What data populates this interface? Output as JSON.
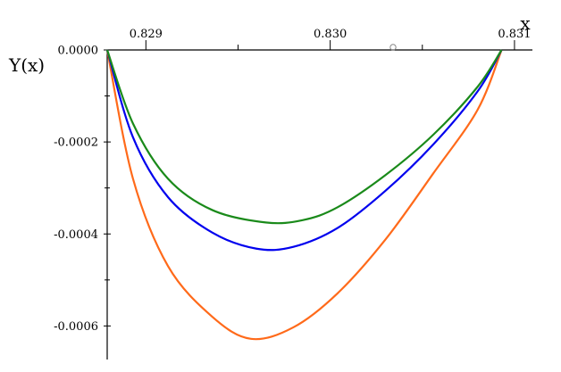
{
  "chart_data": {
    "type": "line",
    "title": "",
    "xlabel": "x",
    "ylabel": "Y(x)",
    "xlim": [
      0.82879,
      0.83101
    ],
    "ylim": [
      -0.00064,
      0.0
    ],
    "x_ticks": [
      0.829,
      0.83,
      0.831
    ],
    "x_tick_labels": [
      "0.829",
      "0.830",
      "0.831"
    ],
    "x_minor_ticks": [
      0.8295,
      0.8305
    ],
    "y_ticks": [
      0.0,
      -0.0002,
      -0.0004,
      -0.0006
    ],
    "y_tick_labels": [
      "0.0000",
      "-0.0002",
      "-0.0004",
      "-0.0006"
    ],
    "y_minor_ticks": [
      -0.0001,
      -0.0003,
      -0.0005
    ],
    "x_axis_position": "top",
    "grid": false,
    "legend": "none",
    "series": [
      {
        "color": "#ff6a1a",
        "points": [
          [
            0.82879,
            0.0
          ],
          [
            0.82893,
            -0.00028
          ],
          [
            0.82912,
            -0.00047
          ],
          [
            0.82936,
            -0.00058
          ],
          [
            0.82957,
            -0.000628
          ],
          [
            0.8298,
            -0.000603
          ],
          [
            0.83004,
            -0.000529
          ],
          [
            0.8303,
            -0.000412
          ],
          [
            0.83056,
            -0.000268
          ],
          [
            0.8308,
            -0.00013
          ],
          [
            0.83093,
            0.0
          ]
        ]
      },
      {
        "color": "#0000ee",
        "points": [
          [
            0.82879,
            0.0
          ],
          [
            0.82893,
            -0.00019
          ],
          [
            0.82912,
            -0.00032
          ],
          [
            0.82936,
            -0.000397
          ],
          [
            0.8296,
            -0.000432
          ],
          [
            0.8298,
            -0.000428
          ],
          [
            0.83004,
            -0.000387
          ],
          [
            0.8303,
            -0.000306
          ],
          [
            0.83056,
            -0.000205
          ],
          [
            0.8308,
            -9e-05
          ],
          [
            0.83093,
            0.0
          ]
        ]
      },
      {
        "color": "#1a8a1a",
        "points": [
          [
            0.82879,
            0.0
          ],
          [
            0.82893,
            -0.00016
          ],
          [
            0.82912,
            -0.00028
          ],
          [
            0.82936,
            -0.000348
          ],
          [
            0.82965,
            -0.000375
          ],
          [
            0.82985,
            -0.00037
          ],
          [
            0.83004,
            -0.000342
          ],
          [
            0.8303,
            -0.000272
          ],
          [
            0.83056,
            -0.000184
          ],
          [
            0.8308,
            -8e-05
          ],
          [
            0.83093,
            0.0
          ]
        ]
      }
    ]
  }
}
